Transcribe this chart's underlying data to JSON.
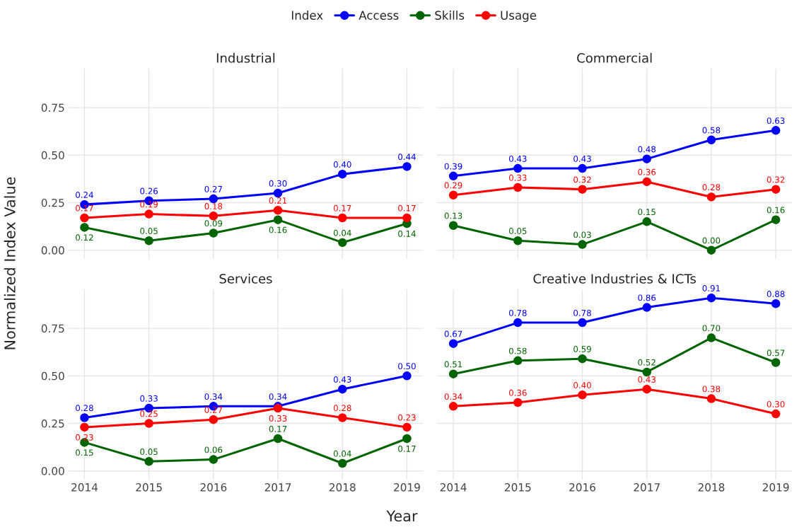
{
  "chart_data": [
    {
      "type": "line",
      "title": "Industrial",
      "ylabel": "Normalized Index Value",
      "legend_title": "Index",
      "legend": "top",
      "tick_labels": "y",
      "x": [
        2014,
        2015,
        2016,
        2017,
        2018,
        2019
      ],
      "xlim": [
        2013.75,
        2019.25
      ],
      "ylim": [
        -0.0455,
        0.9555
      ],
      "xticks": [
        2014,
        2015,
        2016,
        2017,
        2018,
        2019
      ],
      "yticks": [
        {
          "value": 0,
          "label": "0.00"
        },
        {
          "value": 0.25,
          "label": "0.25"
        },
        {
          "value": 0.5,
          "label": "0.50"
        },
        {
          "value": 0.75,
          "label": "0.75"
        }
      ],
      "grid": true,
      "marker": "circle",
      "series": [
        {
          "name": "Access",
          "color": "#0000ff",
          "values": [
            0.24,
            0.26,
            0.27,
            0.3,
            0.4,
            0.44
          ],
          "value_labels": [
            "0.24",
            "0.26",
            "0.27",
            "0.30",
            "0.40",
            "0.44"
          ]
        },
        {
          "name": "Skills",
          "color": "#006400",
          "values": [
            0.12,
            0.05,
            0.09,
            0.16,
            0.04,
            0.14
          ],
          "value_labels": [
            "0.12",
            "0.05",
            "0.09",
            "0.16",
            "0.04",
            "0.14"
          ]
        },
        {
          "name": "Usage",
          "color": "#ff0000",
          "values": [
            0.17,
            0.19,
            0.18,
            0.21,
            0.17,
            0.17
          ],
          "value_labels": [
            "0.17",
            "0.19",
            "0.18",
            "0.21",
            "0.17",
            "0.17"
          ]
        }
      ]
    },
    {
      "type": "line",
      "title": "Commercial",
      "tick_labels": false,
      "x": [
        2014,
        2015,
        2016,
        2017,
        2018,
        2019
      ],
      "xlim": [
        2013.75,
        2019.25
      ],
      "ylim": [
        -0.0455,
        0.9555
      ],
      "xticks": [
        2014,
        2015,
        2016,
        2017,
        2018,
        2019
      ],
      "yticks": [
        0,
        0.25,
        0.5,
        0.75
      ],
      "grid": true,
      "marker": "circle",
      "series": [
        {
          "color": "#0000ff",
          "values": [
            0.39,
            0.43,
            0.43,
            0.48,
            0.58,
            0.63
          ],
          "value_labels": [
            "0.39",
            "0.43",
            "0.43",
            "0.48",
            "0.58",
            "0.63"
          ]
        },
        {
          "color": "#006400",
          "values": [
            0.13,
            0.05,
            0.03,
            0.15,
            0.0,
            0.16
          ],
          "value_labels": [
            "0.13",
            "0.05",
            "0.03",
            "0.15",
            "0.00",
            "0.16"
          ]
        },
        {
          "color": "#ff0000",
          "values": [
            0.29,
            0.33,
            0.32,
            0.36,
            0.28,
            0.32
          ],
          "value_labels": [
            "0.29",
            "0.33",
            "0.32",
            "0.36",
            "0.28",
            "0.32"
          ]
        }
      ]
    },
    {
      "type": "line",
      "title": "Services",
      "xlabel": "Year",
      "x": [
        2014,
        2015,
        2016,
        2017,
        2018,
        2019
      ],
      "xlim": [
        2013.75,
        2019.25
      ],
      "ylim": [
        -0.0455,
        0.9555
      ],
      "xticks": [
        2014,
        2015,
        2016,
        2017,
        2018,
        2019
      ],
      "yticks": [
        {
          "value": 0,
          "label": "0.00"
        },
        {
          "value": 0.25,
          "label": "0.25"
        },
        {
          "value": 0.5,
          "label": "0.50"
        },
        {
          "value": 0.75,
          "label": "0.75"
        }
      ],
      "grid": true,
      "marker": "circle",
      "series": [
        {
          "color": "#0000ff",
          "values": [
            0.28,
            0.33,
            0.34,
            0.34,
            0.43,
            0.5
          ],
          "value_labels": [
            "0.28",
            "0.33",
            "0.34",
            "0.34",
            "0.43",
            "0.50"
          ]
        },
        {
          "color": "#006400",
          "values": [
            0.15,
            0.05,
            0.06,
            0.17,
            0.04,
            0.17
          ],
          "value_labels": [
            "0.15",
            "0.05",
            "0.06",
            "0.17",
            "0.04",
            "0.17"
          ]
        },
        {
          "color": "#ff0000",
          "values": [
            0.23,
            0.25,
            0.27,
            0.33,
            0.28,
            0.23
          ],
          "value_labels": [
            "0.23",
            "0.25",
            "0.27",
            "0.33",
            "0.28",
            "0.23"
          ]
        }
      ]
    },
    {
      "type": "line",
      "title": "Creative Industries & ICTs",
      "tick_labels": "x",
      "x": [
        2014,
        2015,
        2016,
        2017,
        2018,
        2019
      ],
      "xlim": [
        2013.75,
        2019.25
      ],
      "ylim": [
        -0.0455,
        0.9555
      ],
      "xticks": [
        2014,
        2015,
        2016,
        2017,
        2018,
        2019
      ],
      "yticks": [
        0,
        0.25,
        0.5,
        0.75
      ],
      "grid": true,
      "marker": "circle",
      "series": [
        {
          "color": "#0000ff",
          "values": [
            0.67,
            0.78,
            0.78,
            0.86,
            0.91,
            0.88
          ],
          "value_labels": [
            "0.67",
            "0.78",
            "0.78",
            "0.86",
            "0.91",
            "0.88"
          ]
        },
        {
          "color": "#006400",
          "values": [
            0.51,
            0.58,
            0.59,
            0.52,
            0.7,
            0.57
          ],
          "value_labels": [
            "0.51",
            "0.58",
            "0.59",
            "0.52",
            "0.70",
            "0.57"
          ]
        },
        {
          "color": "#ff0000",
          "values": [
            0.34,
            0.36,
            0.4,
            0.43,
            0.38,
            0.3
          ],
          "value_labels": [
            "0.34",
            "0.36",
            "0.40",
            "0.43",
            "0.38",
            "0.30"
          ]
        }
      ]
    }
  ]
}
